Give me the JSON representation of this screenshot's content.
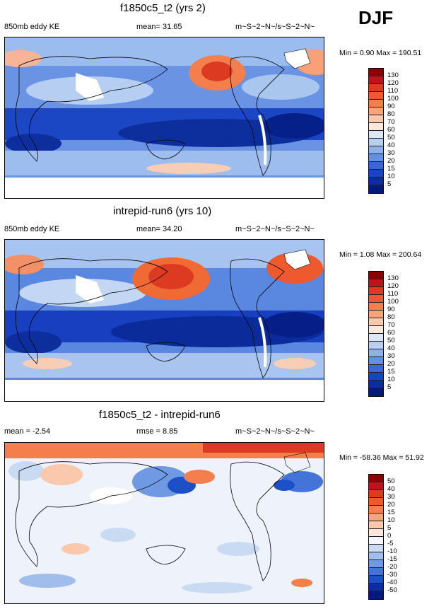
{
  "season": "DJF",
  "panels": [
    {
      "title": "f1850c5_t2 (yrs 2)",
      "left_label": "850mb eddy KE",
      "mid_label": "mean=  31.65",
      "units": "m~S~2~N~/s~S~2~N~",
      "stats": "Min =   0.90 Max = 190.51",
      "levels": [
        "130",
        "120",
        "110",
        "100",
        "90",
        "80",
        "70",
        "60",
        "50",
        "40",
        "30",
        "20",
        "15",
        "10",
        "5"
      ],
      "colors": [
        "#8b0000",
        "#c0121a",
        "#dc3a21",
        "#ee5a2d",
        "#f47e4c",
        "#f7a37b",
        "#f9c8ad",
        "#fbe7dc",
        "#dde8f7",
        "#b9cff1",
        "#8fb1ea",
        "#6191e3",
        "#3868d8",
        "#1646c4",
        "#0a2da4",
        "#021a7a"
      ]
    },
    {
      "title": "intrepid-run6 (yrs 10)",
      "left_label": "850mb eddy KE",
      "mid_label": "mean=  34.20",
      "units": "m~S~2~N~/s~S~2~N~",
      "stats": "Min =   1.08 Max = 200.64",
      "levels": [
        "130",
        "120",
        "110",
        "100",
        "90",
        "80",
        "70",
        "60",
        "50",
        "40",
        "30",
        "20",
        "15",
        "10",
        "5"
      ],
      "colors": [
        "#8b0000",
        "#c0121a",
        "#dc3a21",
        "#ee5a2d",
        "#f47e4c",
        "#f7a37b",
        "#f9c8ad",
        "#fbe7dc",
        "#dde8f7",
        "#b9cff1",
        "#8fb1ea",
        "#6191e3",
        "#3868d8",
        "#1646c4",
        "#0a2da4",
        "#021a7a"
      ]
    },
    {
      "title": "f1850c5_t2 - intrepid-run6",
      "left_label": "mean =  -2.54",
      "mid_label": "rmse =   8.85",
      "units": "m~S~2~N~/s~S~2~N~",
      "stats": "Min = -58.36 Max =  51.92",
      "levels": [
        "50",
        "40",
        "30",
        "20",
        "15",
        "10",
        "5",
        "0",
        "-5",
        "-10",
        "-15",
        "-20",
        "-30",
        "-40",
        "-50"
      ],
      "colors": [
        "#8b0000",
        "#c0121a",
        "#dc3a21",
        "#ee5a2d",
        "#f47e4c",
        "#f7a37b",
        "#f9c8ad",
        "#fbe7dc",
        "#f4f6fb",
        "#c9daf3",
        "#a0bdec",
        "#7099e4",
        "#4574d9",
        "#1d4fc7",
        "#0a2da4",
        "#021a7a"
      ]
    }
  ]
}
